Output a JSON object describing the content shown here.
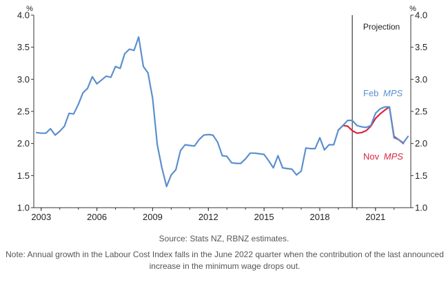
{
  "chart_data": {
    "type": "line",
    "y_unit_left": "%",
    "y_unit_right": "%",
    "ylim": [
      1.0,
      4.0
    ],
    "yticks": [
      "1.0",
      "1.5",
      "2.0",
      "2.5",
      "3.0",
      "3.5",
      "4.0"
    ],
    "xlim": [
      2002.6,
      2022.9
    ],
    "xticks": [
      "2003",
      "2006",
      "2009",
      "2012",
      "2015",
      "2018",
      "2021"
    ],
    "projection_start": 2019.75,
    "projection_label": "Projection",
    "series": [
      {
        "name": "Feb MPS",
        "name_plain": "Feb ",
        "name_italic": "MPS",
        "color": "#5b8fcf",
        "x": [
          2002.75,
          2003.0,
          2003.25,
          2003.5,
          2003.75,
          2004.0,
          2004.25,
          2004.5,
          2004.75,
          2005.0,
          2005.25,
          2005.5,
          2005.75,
          2006.0,
          2006.25,
          2006.5,
          2006.75,
          2007.0,
          2007.25,
          2007.5,
          2007.75,
          2008.0,
          2008.25,
          2008.5,
          2008.75,
          2009.0,
          2009.25,
          2009.5,
          2009.75,
          2010.0,
          2010.25,
          2010.5,
          2010.75,
          2011.0,
          2011.25,
          2011.5,
          2011.75,
          2012.0,
          2012.25,
          2012.5,
          2012.75,
          2013.0,
          2013.25,
          2013.5,
          2013.75,
          2014.0,
          2014.25,
          2014.5,
          2014.75,
          2015.0,
          2015.25,
          2015.5,
          2015.75,
          2016.0,
          2016.25,
          2016.5,
          2016.75,
          2017.0,
          2017.25,
          2017.5,
          2017.75,
          2018.0,
          2018.25,
          2018.5,
          2018.75,
          2019.0,
          2019.25,
          2019.5,
          2019.75,
          2020.0,
          2020.25,
          2020.5,
          2020.75,
          2021.0,
          2021.25,
          2021.5,
          2021.75,
          2022.0,
          2022.25,
          2022.5,
          2022.75
        ],
        "values": [
          2.17,
          2.16,
          2.16,
          2.23,
          2.13,
          2.19,
          2.27,
          2.47,
          2.46,
          2.61,
          2.79,
          2.86,
          3.04,
          2.93,
          2.99,
          3.05,
          3.03,
          3.2,
          3.17,
          3.4,
          3.47,
          3.45,
          3.66,
          3.2,
          3.1,
          2.7,
          1.98,
          1.62,
          1.33,
          1.51,
          1.59,
          1.89,
          1.98,
          1.97,
          1.96,
          2.06,
          2.13,
          2.14,
          2.13,
          2.02,
          1.81,
          1.8,
          1.7,
          1.69,
          1.69,
          1.76,
          1.85,
          1.85,
          1.84,
          1.83,
          1.73,
          1.62,
          1.81,
          1.62,
          1.61,
          1.6,
          1.51,
          1.57,
          1.93,
          1.92,
          1.92,
          2.09,
          1.9,
          1.98,
          1.98,
          2.21,
          2.28,
          2.36,
          2.36,
          2.28,
          2.26,
          2.25,
          2.28,
          2.47,
          2.54,
          2.57,
          2.57,
          2.09,
          2.06,
          2.01,
          2.11
        ]
      },
      {
        "name": "Nov MPS",
        "name_plain": "Nov ",
        "name_italic": "MPS",
        "color": "#d9253f",
        "x": [
          2019.0,
          2019.25,
          2019.5,
          2019.75,
          2020.0,
          2020.25,
          2020.5,
          2020.75,
          2021.0,
          2021.25,
          2021.5,
          2021.75,
          2022.0,
          2022.25,
          2022.5
        ],
        "values": [
          2.21,
          2.28,
          2.27,
          2.2,
          2.16,
          2.17,
          2.2,
          2.27,
          2.39,
          2.46,
          2.52,
          2.57,
          2.11,
          2.06,
          2.0
        ]
      }
    ]
  },
  "footer": {
    "source": "Source: Stats NZ, RBNZ estimates.",
    "note": "Note: Annual growth in the Labour Cost Index falls in the June 2022 quarter when the contribution of the last announced increase in the minimum wage drops out."
  }
}
